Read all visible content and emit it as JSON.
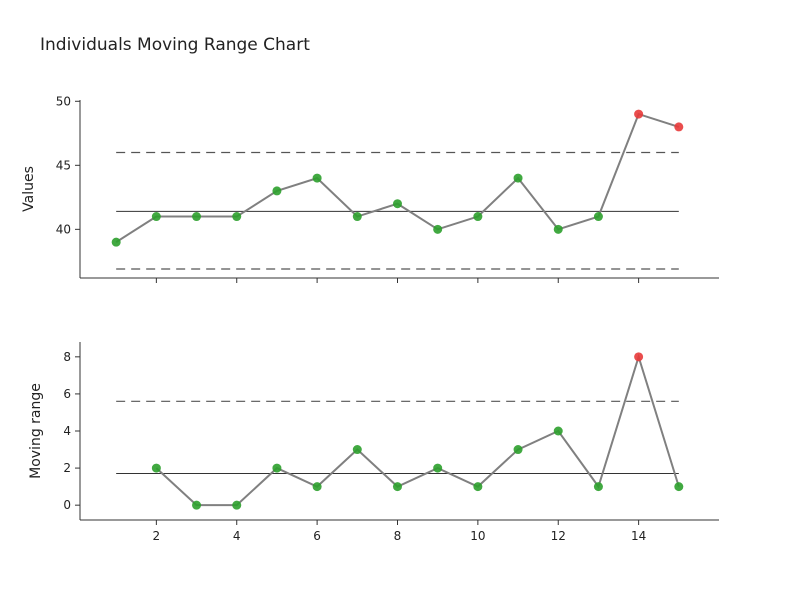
{
  "chart_title": "Individuals Moving Range Chart",
  "colors": {
    "series_line": "#808080",
    "in_control_point": "#2ca02c",
    "out_of_control_point": "#e83a3a",
    "center_line": "#333333",
    "limit_line": "#555555",
    "axis": "#333333"
  },
  "chart_data": [
    {
      "type": "line",
      "ylabel": "Values",
      "xlabel": "",
      "xlim": [
        0.1,
        16
      ],
      "ylim": [
        36.2,
        50.1
      ],
      "yticks": [
        40,
        45,
        50
      ],
      "center_line": 41.4,
      "upper_limit": 46,
      "lower_limit": 36.9,
      "x": [
        1,
        2,
        3,
        4,
        5,
        6,
        7,
        8,
        9,
        10,
        11,
        12,
        13,
        14,
        15
      ],
      "values": [
        39,
        41,
        41,
        41,
        43,
        44,
        41,
        42,
        40,
        41,
        44,
        40,
        41,
        49,
        48
      ],
      "out_of_control": [
        false,
        false,
        false,
        false,
        false,
        false,
        false,
        false,
        false,
        false,
        false,
        false,
        false,
        true,
        true
      ]
    },
    {
      "type": "line",
      "ylabel": "Moving range",
      "xlabel": "",
      "xlim": [
        0.1,
        16
      ],
      "ylim": [
        -0.8,
        8.8
      ],
      "xticks": [
        2,
        4,
        6,
        8,
        10,
        12,
        14
      ],
      "yticks": [
        0,
        2,
        4,
        6,
        8
      ],
      "center_line": 1.71,
      "upper_limit": 5.6,
      "x": [
        2,
        3,
        4,
        5,
        6,
        7,
        8,
        9,
        10,
        11,
        12,
        13,
        14,
        15
      ],
      "values": [
        2,
        0,
        0,
        2,
        1,
        3,
        1,
        2,
        1,
        3,
        4,
        1,
        8,
        1
      ],
      "out_of_control": [
        false,
        false,
        false,
        false,
        false,
        false,
        false,
        false,
        false,
        false,
        false,
        false,
        true,
        false
      ]
    }
  ]
}
